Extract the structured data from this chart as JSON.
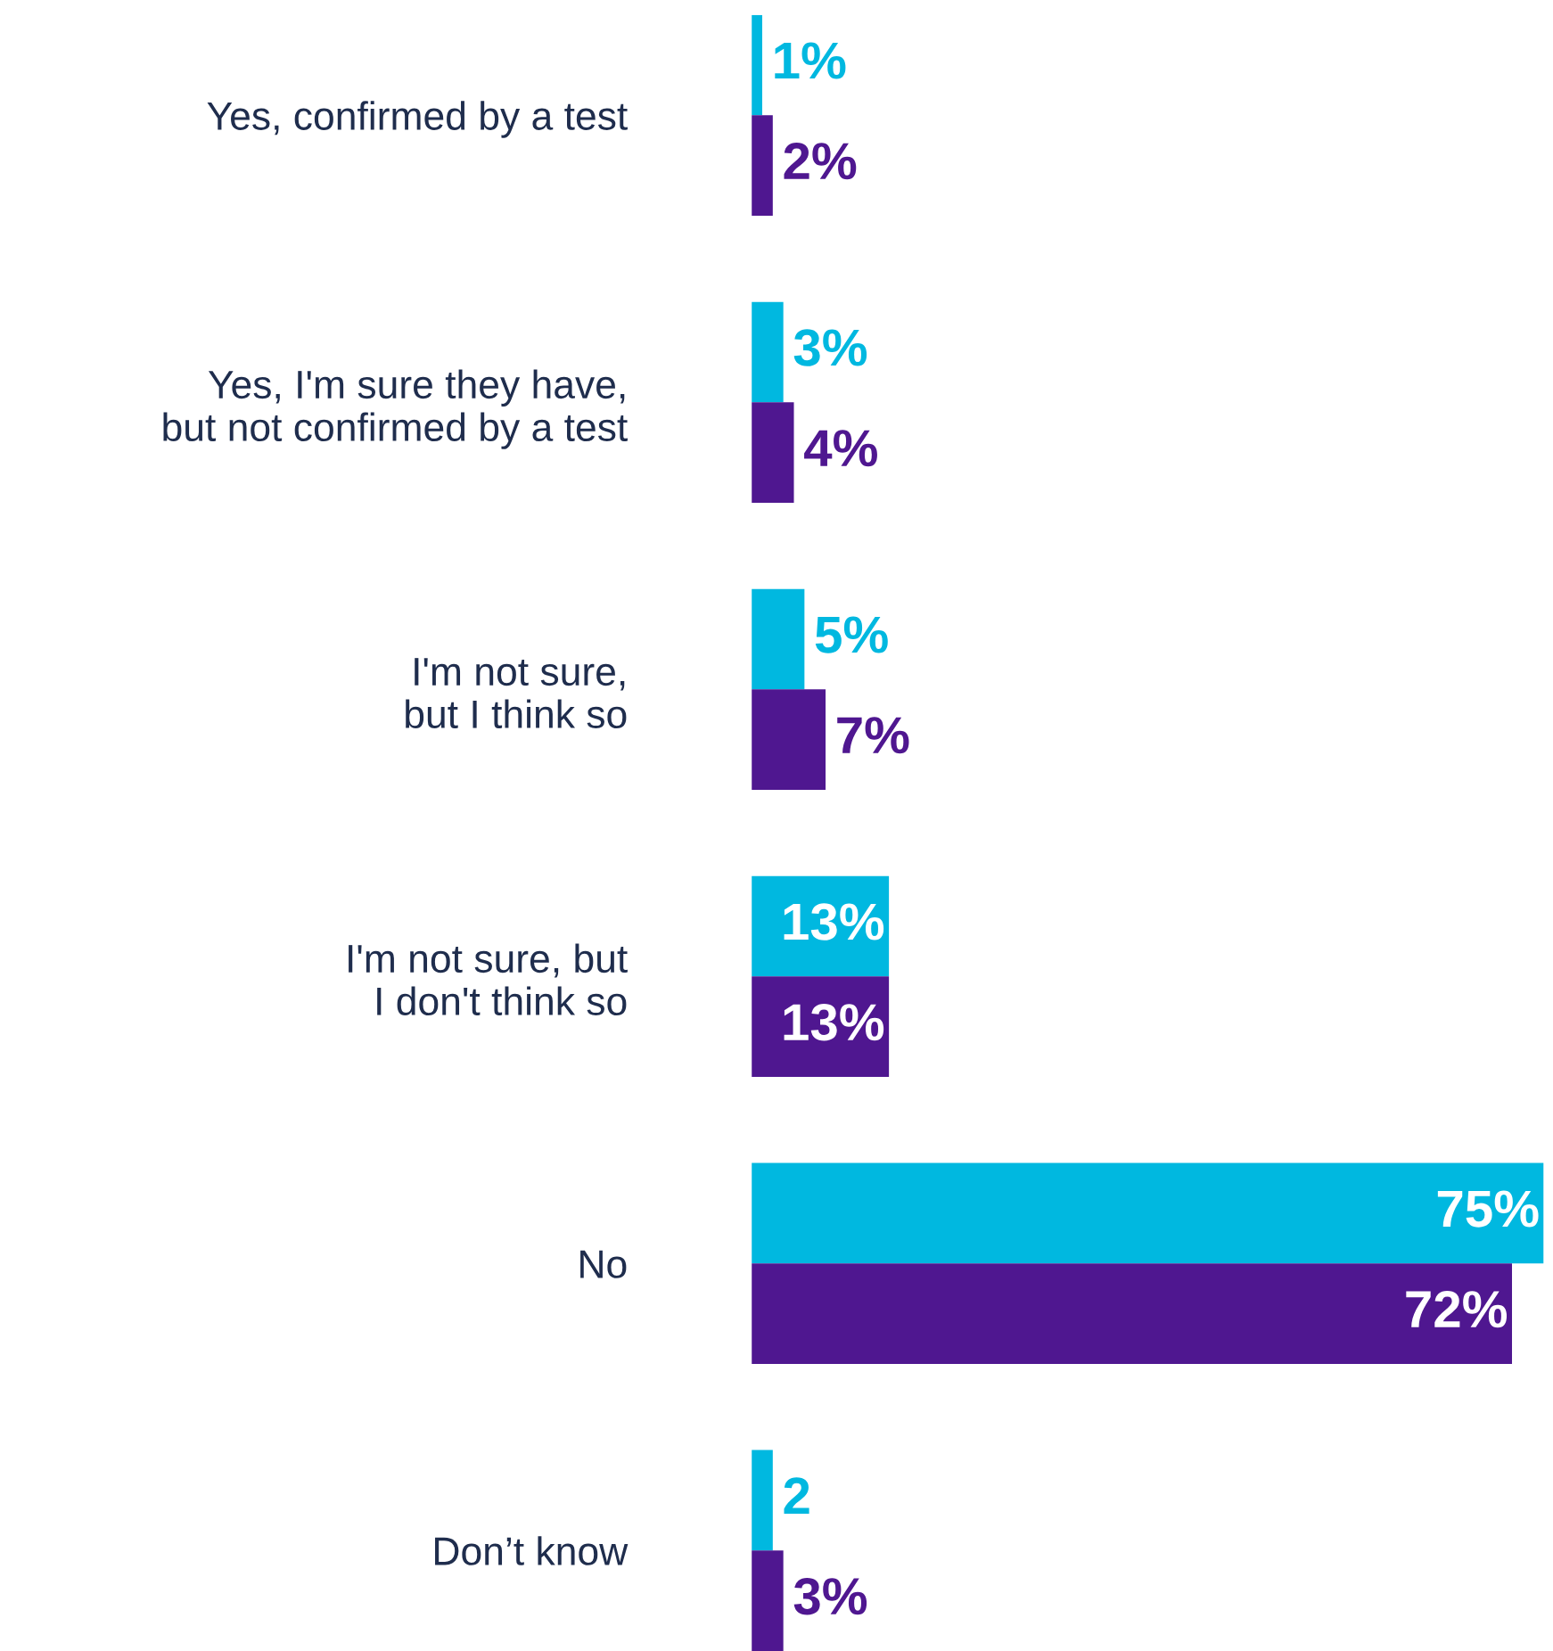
{
  "chart_data": {
    "type": "bar",
    "orientation": "horizontal",
    "categories": [
      "Yes, confirmed by a test",
      "Yes, I'm sure they have,\nbut not confirmed by a test",
      "I'm not sure,\nbut I think so",
      "I'm not sure, but\nI don't think so",
      "No",
      "Don’t know"
    ],
    "series": [
      {
        "color": "#00b8e0",
        "values": [
          1,
          3,
          5,
          13,
          75,
          2
        ],
        "value_labels": [
          "1%",
          "3%",
          "5%",
          "13%",
          "75%",
          "2"
        ]
      },
      {
        "color": "#4f1790",
        "values": [
          2,
          4,
          7,
          13,
          72,
          3
        ],
        "value_labels": [
          "2%",
          "4%",
          "7%",
          "13%",
          "72%",
          "3%"
        ]
      }
    ],
    "grid": false,
    "legend": false
  }
}
